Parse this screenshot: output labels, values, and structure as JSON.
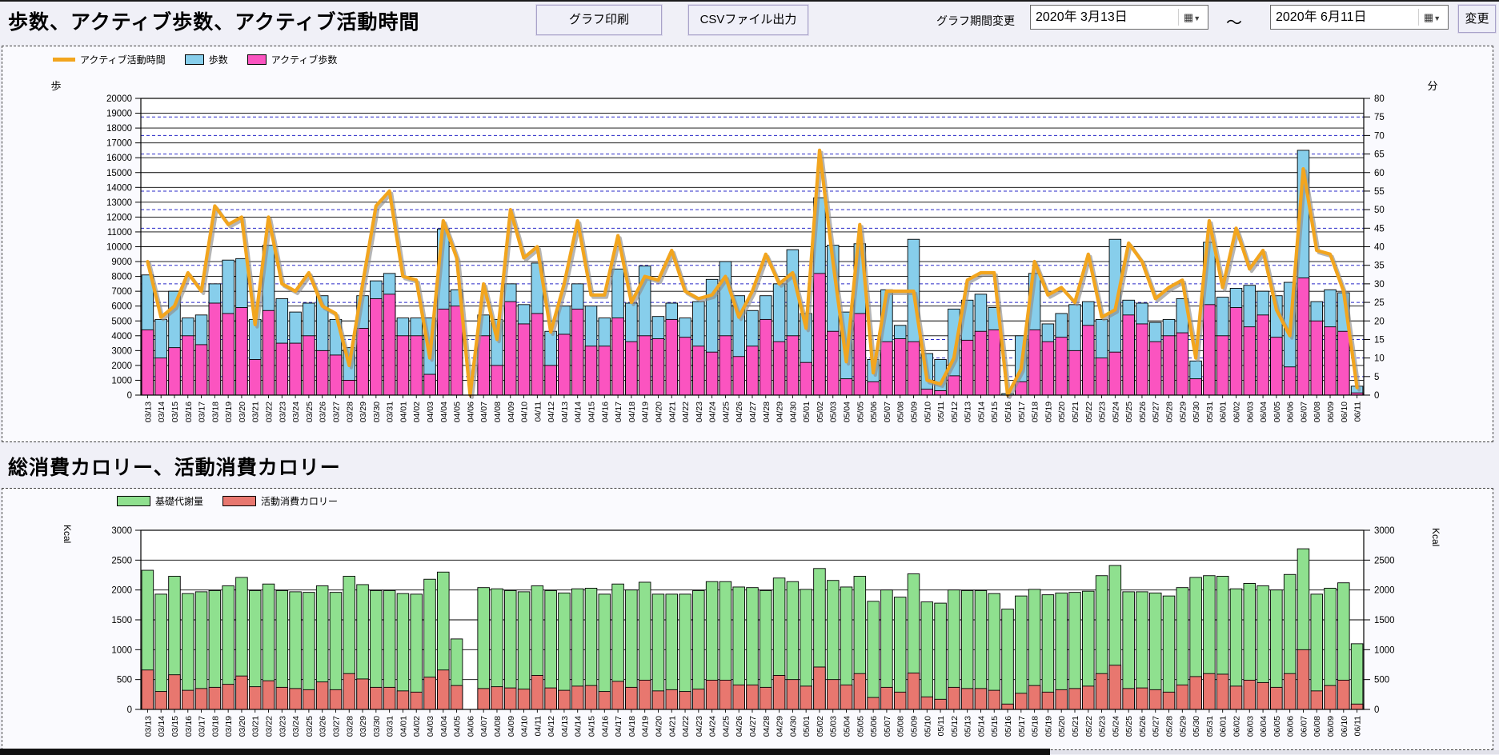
{
  "header": {
    "title": "歩数、アクティブ歩数、アクティブ活動時間",
    "print_button": "グラフ印刷",
    "csv_button": "CSVファイル出力",
    "period_label": "グラフ期間変更",
    "date_from": "2020年 3月13日",
    "date_to": "2020年 6月11日",
    "tilde": "〜",
    "change_button": "変更",
    "calendar_icon": "▦"
  },
  "section2_title": "総消費カロリー、活動消費カロリー",
  "dates": [
    "03/13",
    "03/14",
    "03/15",
    "03/16",
    "03/17",
    "03/18",
    "03/19",
    "03/20",
    "03/21",
    "03/22",
    "03/23",
    "03/24",
    "03/25",
    "03/26",
    "03/27",
    "03/28",
    "03/29",
    "03/30",
    "03/31",
    "04/01",
    "04/02",
    "04/03",
    "04/04",
    "04/05",
    "04/06",
    "04/07",
    "04/08",
    "04/09",
    "04/10",
    "04/11",
    "04/12",
    "04/13",
    "04/14",
    "04/15",
    "04/16",
    "04/17",
    "04/18",
    "04/19",
    "04/20",
    "04/21",
    "04/22",
    "04/23",
    "04/24",
    "04/25",
    "04/26",
    "04/27",
    "04/28",
    "04/29",
    "04/30",
    "05/01",
    "05/02",
    "05/03",
    "05/04",
    "05/05",
    "05/06",
    "05/07",
    "05/08",
    "05/09",
    "05/10",
    "05/11",
    "05/12",
    "05/13",
    "05/14",
    "05/15",
    "05/16",
    "05/17",
    "05/18",
    "05/19",
    "05/20",
    "05/21",
    "05/22",
    "05/23",
    "05/24",
    "05/25",
    "05/26",
    "05/27",
    "05/28",
    "05/29",
    "05/30",
    "05/31",
    "06/01",
    "06/02",
    "06/03",
    "06/04",
    "06/05",
    "06/06",
    "06/07",
    "06/08",
    "06/09",
    "06/10",
    "06/11"
  ],
  "chart_data": [
    {
      "type": "bar",
      "title": "歩数、アクティブ歩数、アクティブ活動時間",
      "legend": [
        {
          "label": "アクティブ活動時間",
          "color": "#F2A51E",
          "kind": "line"
        },
        {
          "label": "歩数",
          "color": "#87CEEB",
          "kind": "box"
        },
        {
          "label": "アクティブ歩数",
          "color": "#FB54C0",
          "kind": "box"
        }
      ],
      "left_axis": {
        "unit": "歩",
        "min": 0,
        "max": 20000,
        "step": 1000
      },
      "right_axis": {
        "unit": "分",
        "min": 0,
        "max": 80,
        "step": 5
      },
      "grid": {
        "solid_color": "#000000",
        "dashed_color": "#2A2AC8"
      },
      "series": [
        {
          "name": "歩数",
          "axis": "left",
          "values": [
            8100,
            5100,
            7000,
            5200,
            5400,
            7500,
            9100,
            9200,
            5100,
            10100,
            6500,
            5600,
            6200,
            6700,
            5100,
            3200,
            6700,
            7700,
            8200,
            5200,
            5200,
            5200,
            11200,
            7100,
            0,
            5400,
            5100,
            7500,
            6100,
            8900,
            4300,
            6000,
            7500,
            6000,
            5200,
            8500,
            6200,
            8700,
            5300,
            6200,
            5200,
            6300,
            7800,
            9000,
            6700,
            5700,
            6700,
            7500,
            9800,
            5500,
            13300,
            10100,
            5600,
            10200,
            2400,
            7100,
            4700,
            10500,
            2800,
            2400,
            5800,
            6400,
            6800,
            5900,
            100,
            4000,
            8200,
            4800,
            5500,
            6100,
            6300,
            5100,
            10500,
            6400,
            6200,
            4900,
            5100,
            6500,
            2300,
            10300,
            6600,
            7200,
            7400,
            7000,
            6700,
            7600,
            16500,
            6300,
            7100,
            6900,
            600
          ]
        },
        {
          "name": "アクティブ歩数",
          "axis": "left",
          "values": [
            4400,
            2500,
            3200,
            4000,
            3400,
            6200,
            5500,
            5900,
            2400,
            5700,
            3500,
            3500,
            4000,
            3000,
            2700,
            1000,
            4500,
            6500,
            6800,
            4000,
            4000,
            1400,
            5800,
            6000,
            0,
            4000,
            2000,
            6300,
            4800,
            5500,
            2000,
            4100,
            5800,
            3300,
            3300,
            5200,
            3600,
            4000,
            3800,
            5100,
            3900,
            3300,
            2900,
            4000,
            2600,
            3300,
            5100,
            3600,
            4000,
            2200,
            8200,
            4300,
            1100,
            5500,
            900,
            3600,
            3800,
            3600,
            400,
            300,
            1300,
            3700,
            4300,
            4400,
            0,
            900,
            4400,
            3600,
            3900,
            3000,
            4700,
            2500,
            2900,
            5400,
            4800,
            3600,
            4000,
            4200,
            1100,
            6100,
            4000,
            5900,
            4600,
            5400,
            3900,
            1900,
            7900,
            5000,
            4600,
            4300,
            150
          ]
        },
        {
          "name": "アクティブ活動時間",
          "axis": "right",
          "values": [
            36,
            21,
            24,
            33,
            28,
            51,
            46,
            48,
            19,
            48,
            30,
            28,
            33,
            24,
            22,
            8,
            30,
            51,
            55,
            32,
            31,
            10,
            47,
            37,
            0,
            30,
            15,
            50,
            37,
            40,
            17,
            30,
            47,
            27,
            27,
            43,
            25,
            32,
            31,
            39,
            28,
            26,
            27,
            32,
            21,
            28,
            38,
            30,
            33,
            18,
            66,
            36,
            9,
            46,
            6,
            28,
            28,
            28,
            4,
            3,
            10,
            31,
            33,
            33,
            0,
            7,
            36,
            27,
            29,
            25,
            38,
            21,
            23,
            41,
            36,
            26,
            29,
            31,
            10,
            47,
            29,
            45,
            34,
            39,
            23,
            16,
            61,
            39,
            38,
            28,
            2
          ]
        }
      ]
    },
    {
      "type": "bar",
      "title": "総消費カロリー、活動消費カロリー",
      "legend": [
        {
          "label": "基礎代謝量",
          "color": "#8FE08F",
          "kind": "box"
        },
        {
          "label": "活動消費カロリー",
          "color": "#E8776F",
          "kind": "box"
        }
      ],
      "left_axis": {
        "unit": "Kcal",
        "min": 0,
        "max": 3000,
        "step": 500
      },
      "right_axis": {
        "unit": "Kcal",
        "min": 0,
        "max": 3000,
        "step": 500
      },
      "grid": {
        "solid_color": "#000000"
      },
      "series": [
        {
          "name": "基礎代謝量",
          "values": [
            1670,
            1630,
            1650,
            1620,
            1620,
            1620,
            1650,
            1650,
            1610,
            1620,
            1620,
            1620,
            1630,
            1610,
            1630,
            1630,
            1580,
            1620,
            1620,
            1630,
            1640,
            1640,
            1640,
            780,
            0,
            1690,
            1640,
            1630,
            1630,
            1500,
            1630,
            1630,
            1630,
            1630,
            1630,
            1630,
            1630,
            1640,
            1620,
            1600,
            1630,
            1650,
            1650,
            1650,
            1640,
            1630,
            1620,
            1630,
            1640,
            1620,
            1650,
            1660,
            1640,
            1630,
            1610,
            1630,
            1590,
            1660,
            1590,
            1610,
            1630,
            1640,
            1640,
            1620,
            1590,
            1630,
            1610,
            1630,
            1620,
            1610,
            1590,
            1640,
            1670,
            1620,
            1610,
            1620,
            1610,
            1630,
            1660,
            1640,
            1640,
            1630,
            1620,
            1620,
            1630,
            1660,
            1690,
            1620,
            1630,
            1630,
            1010
          ]
        },
        {
          "name": "活動消費カロリー",
          "values": [
            660,
            300,
            580,
            320,
            350,
            370,
            420,
            560,
            380,
            480,
            370,
            350,
            330,
            460,
            330,
            600,
            510,
            370,
            370,
            310,
            290,
            540,
            660,
            400,
            0,
            350,
            380,
            360,
            340,
            570,
            360,
            320,
            390,
            400,
            300,
            470,
            370,
            490,
            310,
            330,
            300,
            340,
            490,
            490,
            410,
            410,
            370,
            570,
            500,
            390,
            710,
            500,
            410,
            600,
            200,
            370,
            290,
            610,
            210,
            170,
            370,
            350,
            350,
            320,
            90,
            270,
            400,
            290,
            330,
            350,
            390,
            600,
            740,
            350,
            360,
            330,
            290,
            410,
            550,
            600,
            590,
            390,
            490,
            450,
            370,
            600,
            1000,
            310,
            400,
            490,
            90
          ]
        }
      ]
    }
  ]
}
